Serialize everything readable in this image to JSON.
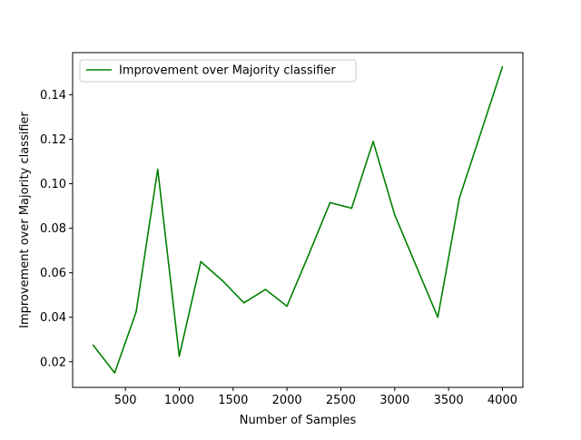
{
  "chart_data": {
    "type": "line",
    "xlabel": "Number of Samples",
    "ylabel": "Improvement over Majority classifier",
    "xlim": [
      10,
      4190
    ],
    "ylim": [
      0.0085,
      0.1589
    ],
    "xticks": [
      500,
      1000,
      1500,
      2000,
      2500,
      3000,
      3500,
      4000
    ],
    "xtick_labels": [
      "500",
      "1000",
      "1500",
      "2000",
      "2500",
      "3000",
      "3500",
      "4000"
    ],
    "yticks": [
      0.02,
      0.04,
      0.06,
      0.08,
      0.1,
      0.12,
      0.14
    ],
    "ytick_labels": [
      "0.02",
      "0.04",
      "0.06",
      "0.08",
      "0.10",
      "0.12",
      "0.14"
    ],
    "grid": false,
    "legend": {
      "position": "upper-left",
      "entries": [
        "Improvement over Majority classifier"
      ]
    },
    "series": [
      {
        "name": "Improvement over Majority classifier",
        "color": "#008000",
        "x": [
          200,
          400,
          600,
          800,
          1000,
          1200,
          1400,
          1600,
          1800,
          2000,
          2200,
          2400,
          2600,
          2800,
          3000,
          3200,
          3400,
          3600,
          3800,
          4000
        ],
        "y": [
          0.0275,
          0.015,
          0.0425,
          0.1065,
          0.0225,
          0.065,
          0.0565,
          0.0465,
          0.0525,
          0.045,
          0.068,
          0.0915,
          0.089,
          0.119,
          0.086,
          0.063,
          0.04,
          0.0935,
          0.123,
          0.1525
        ]
      }
    ]
  }
}
